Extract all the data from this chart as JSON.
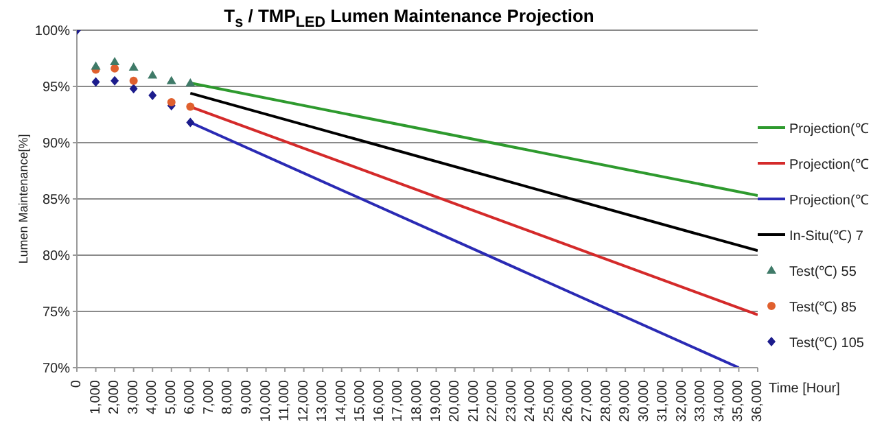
{
  "chart_data": {
    "type": "line",
    "title": "T$_{s}$ / TMP$_{LED}$ Lumen Maintenance Projection",
    "xlabel": "Time [Hour]",
    "ylabel": "Lumen Maintenance[%]",
    "xlim": [
      0,
      36000
    ],
    "xticks": [
      {
        "value": 0,
        "label": "0"
      },
      {
        "value": 1000,
        "label": "1,000"
      },
      {
        "value": 2000,
        "label": "2,000"
      },
      {
        "value": 3000,
        "label": "3,000"
      },
      {
        "value": 4000,
        "label": "4,000"
      },
      {
        "value": 5000,
        "label": "5,000"
      },
      {
        "value": 6000,
        "label": "6,000"
      },
      {
        "value": 7000,
        "label": "7,000"
      },
      {
        "value": 8000,
        "label": "8,000"
      },
      {
        "value": 9000,
        "label": "9,000"
      },
      {
        "value": 10000,
        "label": "10,000"
      },
      {
        "value": 11000,
        "label": "11,000"
      },
      {
        "value": 12000,
        "label": "12,000"
      },
      {
        "value": 13000,
        "label": "13,000"
      },
      {
        "value": 14000,
        "label": "14,000"
      },
      {
        "value": 15000,
        "label": "15,000"
      },
      {
        "value": 16000,
        "label": "16,000"
      },
      {
        "value": 17000,
        "label": "17,000"
      },
      {
        "value": 18000,
        "label": "18,000"
      },
      {
        "value": 19000,
        "label": "19,000"
      },
      {
        "value": 20000,
        "label": "20,000"
      },
      {
        "value": 21000,
        "label": "21,000"
      },
      {
        "value": 22000,
        "label": "22,000"
      },
      {
        "value": 23000,
        "label": "23,000"
      },
      {
        "value": 24000,
        "label": "24,000"
      },
      {
        "value": 25000,
        "label": "25,000"
      },
      {
        "value": 26000,
        "label": "26,000"
      },
      {
        "value": 27000,
        "label": "27,000"
      },
      {
        "value": 28000,
        "label": "28,000"
      },
      {
        "value": 29000,
        "label": "29,000"
      },
      {
        "value": 30000,
        "label": "30,000"
      },
      {
        "value": 31000,
        "label": "31,000"
      },
      {
        "value": 32000,
        "label": "32,000"
      },
      {
        "value": 33000,
        "label": "33,000"
      },
      {
        "value": 34000,
        "label": "34,000"
      },
      {
        "value": 35000,
        "label": "35,000"
      },
      {
        "value": 36000,
        "label": "36,000"
      }
    ],
    "ylim": [
      70,
      100
    ],
    "yticks": [
      {
        "value": 70,
        "label": "70%"
      },
      {
        "value": 75,
        "label": "75%"
      },
      {
        "value": 80,
        "label": "80%"
      },
      {
        "value": 85,
        "label": "85%"
      },
      {
        "value": 90,
        "label": "90%"
      },
      {
        "value": 95,
        "label": "95%"
      },
      {
        "value": 100,
        "label": "100%"
      }
    ],
    "grid": "y",
    "legend": "right",
    "series": [
      {
        "type": "line",
        "name": "Projection(℃",
        "color": "#2e9a2e",
        "marker": "none",
        "x": [
          6000,
          36000
        ],
        "values": [
          95.3,
          85.3
        ]
      },
      {
        "type": "line",
        "name": "Projection(℃",
        "color": "#d42a2a",
        "marker": "none",
        "x": [
          6000,
          36000
        ],
        "values": [
          93.2,
          74.7
        ]
      },
      {
        "type": "line",
        "name": "Projection(℃",
        "color": "#2a2ab4",
        "marker": "none",
        "x": [
          6000,
          35000
        ],
        "values": [
          91.8,
          70
        ]
      },
      {
        "type": "line",
        "name": "In-Situ(℃) 7",
        "color": "#000000",
        "marker": "none",
        "x": [
          6000,
          36000
        ],
        "values": [
          94.4,
          80.4
        ]
      },
      {
        "type": "scatter",
        "name": "Test(℃) 55",
        "color": "#3f7a68",
        "marker": "triangle",
        "x": [
          1000,
          2000,
          3000,
          4000,
          5000,
          6000
        ],
        "values": [
          96.8,
          97.2,
          96.7,
          96.0,
          95.5,
          95.3
        ]
      },
      {
        "type": "scatter",
        "name": "Test(℃) 85",
        "color": "#e0602e",
        "marker": "circle",
        "x": [
          1000,
          2000,
          3000,
          4000,
          5000,
          6000
        ],
        "values": [
          96.5,
          96.6,
          95.5,
          null,
          93.6,
          93.2
        ]
      },
      {
        "type": "scatter",
        "name": "Test(℃) 105",
        "color": "#1c1c8c",
        "marker": "diamond",
        "x": [
          0,
          1000,
          2000,
          3000,
          4000,
          5000,
          6000
        ],
        "values": [
          100,
          95.4,
          95.5,
          94.8,
          94.2,
          93.3,
          91.8
        ]
      }
    ]
  }
}
